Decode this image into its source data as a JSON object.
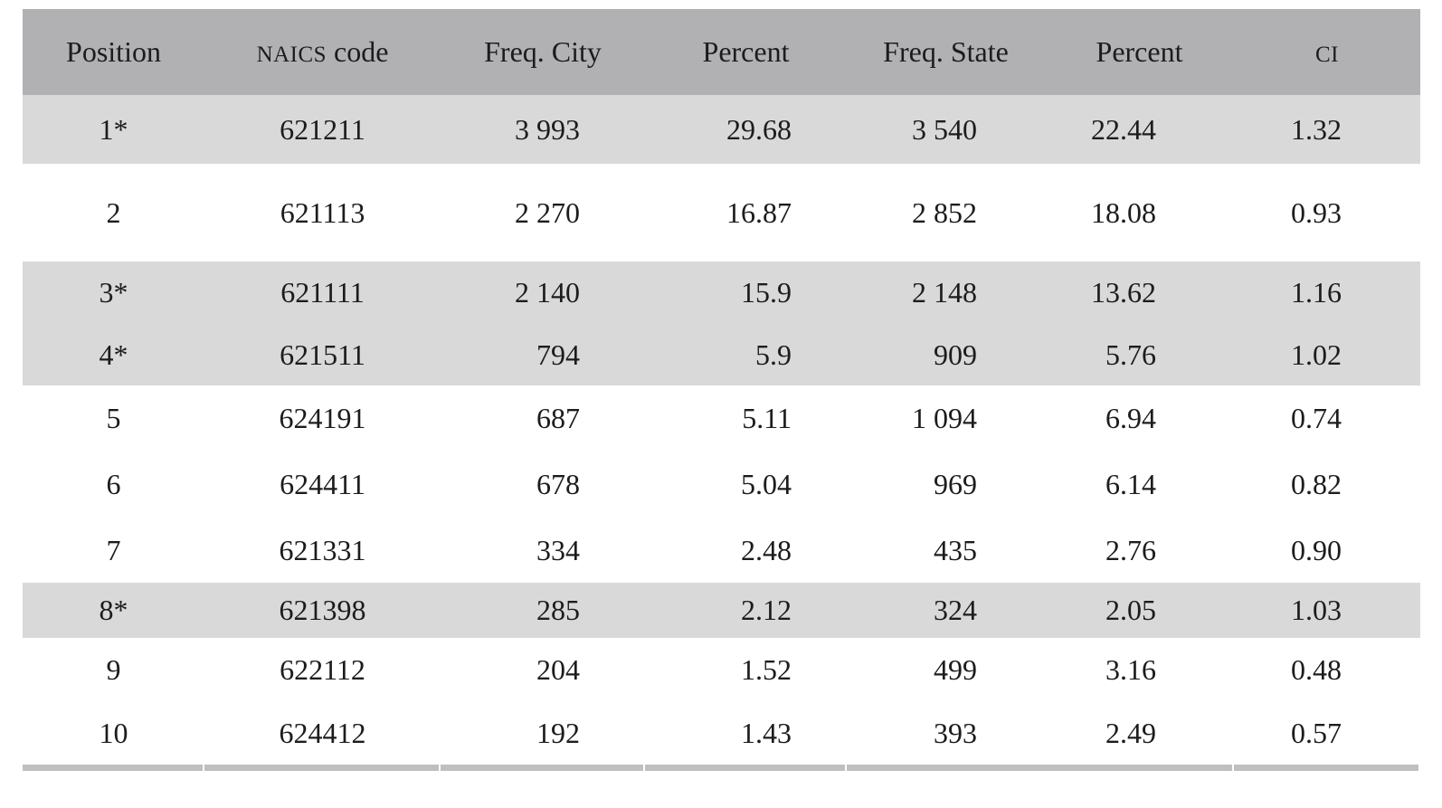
{
  "colors": {
    "header_bg": "#b1b1b4",
    "row_shade": "#d9d9da",
    "bottom_rule": "#bfbfbf",
    "text": "#1c1c1c"
  },
  "table": {
    "columns": [
      {
        "sc": "",
        "rest": "Position"
      },
      {
        "sc": "NAICS",
        "rest": " code"
      },
      {
        "sc": "",
        "rest": "Freq. City"
      },
      {
        "sc": "",
        "rest": "Percent"
      },
      {
        "sc": "",
        "rest": "Freq. State"
      },
      {
        "sc": "",
        "rest": "Percent"
      },
      {
        "sc": "CI",
        "rest": ""
      }
    ],
    "rows": [
      {
        "shaded": true,
        "cells": [
          "1*",
          "621211",
          "3 993",
          "29.68",
          "3 540",
          "22.44",
          "1.32"
        ]
      },
      {
        "shaded": false,
        "cells": [
          "2",
          "621113",
          "2 270",
          "16.87",
          "2 852",
          "18.08",
          "0.93"
        ]
      },
      {
        "shaded": true,
        "cells": [
          "3*",
          "621111",
          "2 140",
          "15.9",
          "2 148",
          "13.62",
          "1.16"
        ]
      },
      {
        "shaded": true,
        "cells": [
          "4*",
          "621511",
          "794",
          "5.9",
          "909",
          "5.76",
          "1.02"
        ]
      },
      {
        "shaded": false,
        "cells": [
          "5",
          "624191",
          "687",
          "5.11",
          "1 094",
          "6.94",
          "0.74"
        ]
      },
      {
        "shaded": false,
        "cells": [
          "6",
          "624411",
          "678",
          "5.04",
          "969",
          "6.14",
          "0.82"
        ]
      },
      {
        "shaded": false,
        "cells": [
          "7",
          "621331",
          "334",
          "2.48",
          "435",
          "2.76",
          "0.90"
        ]
      },
      {
        "shaded": true,
        "cells": [
          "8*",
          "621398",
          "285",
          "2.12",
          "324",
          "2.05",
          "1.03"
        ]
      },
      {
        "shaded": false,
        "cells": [
          "9",
          "622112",
          "204",
          "1.52",
          "499",
          "3.16",
          "0.48"
        ]
      },
      {
        "shaded": false,
        "cells": [
          "10",
          "624412",
          "192",
          "1.43",
          "393",
          "2.49",
          "0.57"
        ]
      }
    ]
  },
  "chart_data": {
    "type": "table",
    "columns": [
      "Position",
      "NAICS code",
      "Freq. City",
      "Percent",
      "Freq. State",
      "Percent",
      "CI"
    ],
    "rows": [
      [
        "1*",
        "621211",
        "3 993",
        "29.68",
        "3 540",
        "22.44",
        "1.32"
      ],
      [
        "2",
        "621113",
        "2 270",
        "16.87",
        "2 852",
        "18.08",
        "0.93"
      ],
      [
        "3*",
        "621111",
        "2 140",
        "15.9",
        "2 148",
        "13.62",
        "1.16"
      ],
      [
        "4*",
        "621511",
        "794",
        "5.9",
        "909",
        "5.76",
        "1.02"
      ],
      [
        "5",
        "624191",
        "687",
        "5.11",
        "1 094",
        "6.94",
        "0.74"
      ],
      [
        "6",
        "624411",
        "678",
        "5.04",
        "969",
        "6.14",
        "0.82"
      ],
      [
        "7",
        "621331",
        "334",
        "2.48",
        "435",
        "2.76",
        "0.90"
      ],
      [
        "8*",
        "621398",
        "285",
        "2.12",
        "324",
        "2.05",
        "1.03"
      ],
      [
        "9",
        "622112",
        "204",
        "1.52",
        "499",
        "3.16",
        "0.48"
      ],
      [
        "10",
        "624412",
        "192",
        "1.43",
        "393",
        "2.49",
        "0.57"
      ]
    ]
  }
}
